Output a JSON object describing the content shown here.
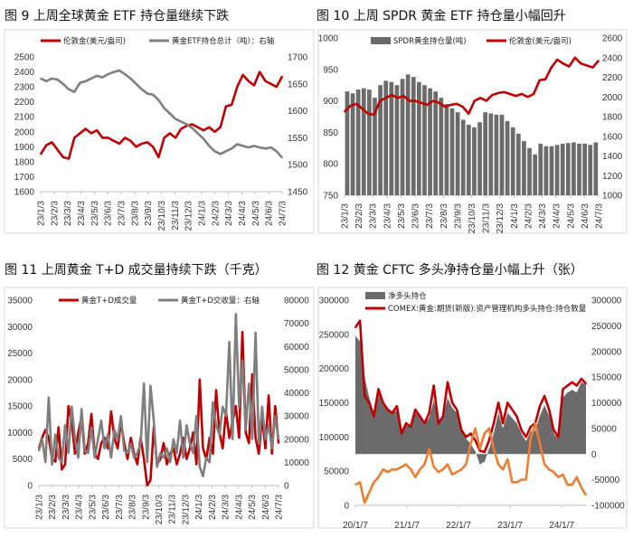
{
  "chart_data": [
    {
      "type": "line",
      "title": "图 9  上周全球黄金 ETF 持仓量继续下跌",
      "x_ticks": [
        "23/1/3",
        "23/2/3",
        "23/3/3",
        "23/4/3",
        "23/5/3",
        "23/6/3",
        "23/7/3",
        "23/8/3",
        "23/9/3",
        "23/10/3",
        "23/11/3",
        "23/12/3",
        "24/1/3",
        "24/2/3",
        "24/3/3",
        "24/4/3",
        "24/5/3",
        "24/6/3",
        "24/7/3"
      ],
      "x_range": [
        "2023-01-03",
        "2024-07-03"
      ],
      "y_left": {
        "range": [
          1600,
          2500
        ],
        "ticks": [
          "2500",
          "2400",
          "2300",
          "2200",
          "2100",
          "2000",
          "1900",
          "1800",
          "1700",
          "1600"
        ]
      },
      "y_right": {
        "range": [
          1450,
          1700
        ],
        "ticks": [
          "1700",
          "1650",
          "1600",
          "1550",
          "1500",
          "1450"
        ]
      },
      "legend": "top",
      "series": [
        {
          "name": "伦敦金(美元/盎司)",
          "axis": "left",
          "kind": "line",
          "color": "#c00000",
          "values": [
            1850,
            1910,
            1930,
            1880,
            1830,
            1820,
            1960,
            1990,
            2020,
            1990,
            2010,
            1960,
            1960,
            1940,
            1920,
            1960,
            1940,
            1900,
            1920,
            1930,
            1900,
            1830,
            1960,
            1990,
            1960,
            2020,
            2040,
            2050,
            2030,
            2010,
            2030,
            2000,
            2030,
            2170,
            2180,
            2300,
            2380,
            2340,
            2310,
            2400,
            2340,
            2320,
            2300,
            2370
          ]
        },
        {
          "name": "黄金ETF持仓总计（吨）：右轴",
          "axis": "right",
          "kind": "line",
          "color": "#7f7f7f",
          "values": [
            1660,
            1655,
            1660,
            1658,
            1650,
            1640,
            1635,
            1652,
            1655,
            1660,
            1665,
            1662,
            1668,
            1672,
            1675,
            1668,
            1660,
            1650,
            1640,
            1632,
            1630,
            1620,
            1605,
            1595,
            1585,
            1580,
            1575,
            1568,
            1558,
            1548,
            1535,
            1525,
            1520,
            1525,
            1530,
            1538,
            1535,
            1532,
            1535,
            1532,
            1530,
            1532,
            1525,
            1513
          ]
        }
      ]
    },
    {
      "type": "bar+line",
      "title": "图 10  上周 SPDR 黄金 ETF 持仓量小幅回升",
      "x_ticks": [
        "23/1/3",
        "23/2/3",
        "23/3/3",
        "23/4/3",
        "23/5/3",
        "23/6/3",
        "23/7/3",
        "23/8/3",
        "23/9/3",
        "23/10/3",
        "23/11/3",
        "23/12/3",
        "24/1/3",
        "24/2/3",
        "24/3/3",
        "24/4/3",
        "24/5/3",
        "24/6/3",
        "24/7/3"
      ],
      "x_range": [
        "2023-01-03",
        "2024-07-03"
      ],
      "y_left": {
        "range": [
          750,
          1000
        ],
        "ticks": [
          "1000",
          "950",
          "900",
          "850",
          "800",
          "750"
        ]
      },
      "y_right": {
        "range": [
          1000,
          2600
        ],
        "ticks": [
          "2600",
          "2400",
          "2200",
          "2000",
          "1800",
          "1600",
          "1400",
          "1200",
          "1000"
        ]
      },
      "legend": "top",
      "series": [
        {
          "name": "SPDR黄金持仓量(吨)",
          "axis": "left",
          "kind": "bar",
          "color": "#6b6b6b",
          "values": [
            915,
            912,
            918,
            920,
            918,
            905,
            925,
            932,
            930,
            925,
            935,
            942,
            938,
            930,
            925,
            920,
            915,
            905,
            895,
            888,
            882,
            870,
            862,
            858,
            866,
            882,
            880,
            878,
            878,
            868,
            858,
            848,
            836,
            825,
            815,
            832,
            828,
            828,
            830,
            832,
            833,
            834,
            832,
            832,
            830,
            834
          ]
        },
        {
          "name": "伦敦金(美元/盎司)",
          "axis": "right",
          "kind": "line",
          "color": "#c00000",
          "values": [
            1850,
            1910,
            1930,
            1880,
            1830,
            1820,
            1960,
            1990,
            2020,
            1990,
            2010,
            1960,
            1960,
            1940,
            1920,
            1960,
            1940,
            1900,
            1920,
            1930,
            1900,
            1830,
            1960,
            1990,
            1960,
            2020,
            2040,
            2050,
            2030,
            2010,
            2030,
            2000,
            2030,
            2170,
            2180,
            2300,
            2380,
            2340,
            2310,
            2400,
            2340,
            2320,
            2300,
            2370
          ]
        }
      ]
    },
    {
      "type": "line",
      "title": "图 11  上周黄金 T+D 成交量持续下跌（千克）",
      "x_ticks": [
        "23/1/3",
        "23/2/3",
        "23/3/3",
        "23/4/3",
        "23/5/3",
        "23/6/3",
        "23/7/3",
        "23/8/3",
        "23/9/3",
        "23/10/3",
        "23/11/3",
        "23/12/3",
        "24/1/3",
        "24/2/3",
        "24/3/3",
        "24/4/3",
        "24/5/3",
        "24/6/3",
        "24/7/3"
      ],
      "x_range": [
        "2023-01-03",
        "2024-07-03"
      ],
      "y_left": {
        "range": [
          0,
          35000
        ],
        "ticks": [
          "35000",
          "30000",
          "25000",
          "20000",
          "15000",
          "10000",
          "5000",
          "0"
        ]
      },
      "y_right": {
        "range": [
          0,
          80000
        ],
        "ticks": [
          "80000",
          "70000",
          "60000",
          "50000",
          "40000",
          "30000",
          "20000",
          "10000",
          "0"
        ]
      },
      "legend": "top",
      "series": [
        {
          "name": "黄金T+D成交量",
          "axis": "left",
          "kind": "line",
          "color": "#c00000",
          "values": [
            7000,
            9000,
            10500,
            9000,
            5000,
            4500,
            11000,
            3000,
            4000,
            15000,
            12000,
            6000,
            10000,
            13000,
            6000,
            8000,
            13500,
            6000,
            5000,
            8000,
            9000,
            7000,
            14000,
            9000,
            7000,
            12000,
            8000,
            5000,
            9000,
            6000,
            4000,
            9000,
            5000,
            0,
            1000,
            11000,
            4000,
            5000,
            8000,
            4000,
            6000,
            7000,
            4000,
            6000,
            9000,
            5000,
            7000,
            10000,
            4000,
            20000,
            7000,
            5000,
            9000,
            6000,
            18000,
            10000,
            7000,
            14000,
            9000,
            12000,
            15000,
            9000,
            29000,
            10000,
            8000,
            21000,
            9000,
            6000,
            13000,
            7000,
            17000,
            6000,
            15000,
            8000
          ]
        },
        {
          "name": "黄金T+D交收量：右轴",
          "axis": "right",
          "kind": "line",
          "color": "#7f7f7f",
          "values": [
            15000,
            20000,
            10000,
            38000,
            9000,
            22000,
            12000,
            10000,
            26000,
            14000,
            34000,
            20000,
            12000,
            33000,
            15000,
            14000,
            25000,
            12000,
            20000,
            28000,
            16000,
            22000,
            12000,
            24000,
            20000,
            30000,
            15000,
            14000,
            18000,
            12000,
            14000,
            18000,
            44000,
            10000,
            43000,
            28000,
            8000,
            14000,
            12000,
            16000,
            10000,
            20000,
            14000,
            28000,
            12000,
            26000,
            18000,
            14000,
            30000,
            8000,
            4000,
            12000,
            10000,
            36000,
            26000,
            22000,
            34000,
            30000,
            62000,
            20000,
            74000,
            34000,
            54000,
            24000,
            44000,
            20000,
            66000,
            18000,
            34000,
            20000,
            26000,
            16000,
            30000,
            20000
          ]
        }
      ]
    },
    {
      "type": "area+line",
      "title": "图 12  黄金 CFTC 多头净持仓量小幅上升（张）",
      "x_ticks": [
        "20/1/7",
        "21/1/7",
        "22/1/7",
        "23/1/7",
        "24/1/7"
      ],
      "x_range": [
        "2020-01-07",
        "2024-07"
      ],
      "y_left": {
        "range": [
          0,
          300000
        ],
        "ticks": [
          "300000",
          "250000",
          "200000",
          "150000",
          "100000",
          "50000",
          "0"
        ]
      },
      "y_right": {
        "range": [
          -100000,
          300000
        ],
        "ticks": [
          "300000",
          "250000",
          "200000",
          "150000",
          "100000",
          "50000",
          "0",
          "-50000",
          "-100000"
        ]
      },
      "legend": "top-left",
      "series": [
        {
          "name": "净多头持仓",
          "axis": "right",
          "kind": "area",
          "color": "#6b6b6b",
          "values": [
            230000,
            220000,
            150000,
            110000,
            80000,
            120000,
            95000,
            90000,
            80000,
            85000,
            45000,
            55000,
            55000,
            80000,
            75000,
            60000,
            70000,
            105000,
            65000,
            70000,
            110000,
            90000,
            80000,
            45000,
            30000,
            20000,
            5000,
            -20000,
            -15000,
            10000,
            40000,
            80000,
            50000,
            80000,
            70000,
            60000,
            40000,
            25000,
            45000,
            45000,
            75000,
            95000,
            75000,
            40000,
            30000,
            110000,
            120000,
            125000,
            120000,
            140000,
            135000
          ]
        },
        {
          "name": "COMEX:黄金:期货(新版):资产管理机构多头持仓:持仓数量",
          "axis": "left",
          "kind": "line",
          "color": "#c00000",
          "values": [
            260000,
            270000,
            160000,
            150000,
            130000,
            170000,
            150000,
            140000,
            135000,
            145000,
            105000,
            120000,
            115000,
            140000,
            130000,
            120000,
            135000,
            175000,
            120000,
            130000,
            180000,
            150000,
            140000,
            110000,
            100000,
            105000,
            95000,
            80000,
            78000,
            95000,
            120000,
            150000,
            120000,
            150000,
            140000,
            130000,
            110000,
            100000,
            115000,
            120000,
            145000,
            160000,
            140000,
            110000,
            100000,
            170000,
            175000,
            180000,
            175000,
            185000,
            178000
          ]
        },
        {
          "axis": "right",
          "kind": "line",
          "color": "#ed7d31",
          "values": [
            -60000,
            -55000,
            -95000,
            -75000,
            -55000,
            -45000,
            -30000,
            -35000,
            -30000,
            -30000,
            -25000,
            -20000,
            -30000,
            -45000,
            -30000,
            -20000,
            10000,
            -25000,
            -35000,
            -30000,
            -20000,
            -40000,
            -35000,
            -30000,
            -20000,
            20000,
            50000,
            10000,
            40000,
            50000,
            10000,
            -20000,
            -30000,
            -10000,
            -55000,
            -55000,
            -50000,
            -50000,
            30000,
            60000,
            20000,
            -20000,
            -30000,
            -35000,
            -45000,
            -40000,
            -60000,
            -60000,
            -45000,
            -65000,
            -80000
          ]
        }
      ]
    }
  ]
}
